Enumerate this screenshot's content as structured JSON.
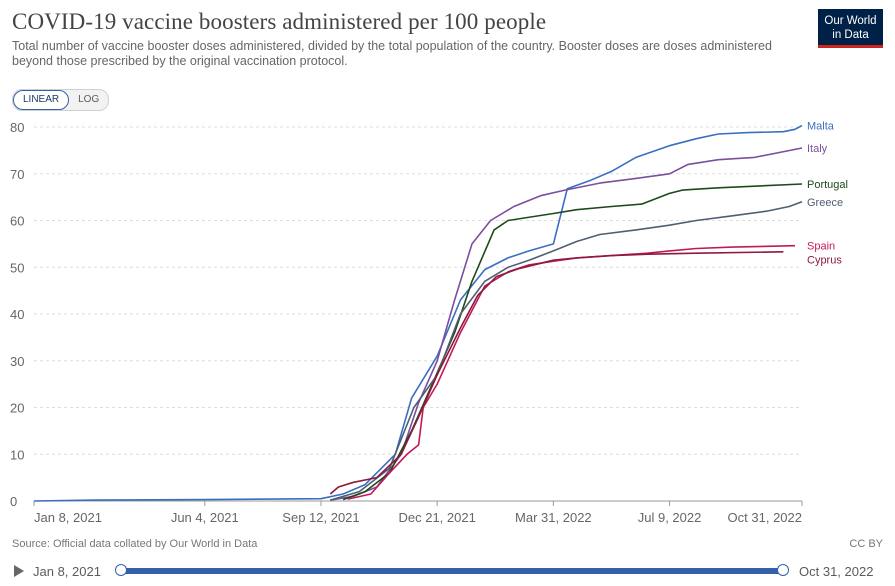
{
  "header": {
    "title": "COVID-19 vaccine boosters administered per 100 people",
    "subtitle": "Total number of vaccine booster doses administered, divided by the total population of the country. Booster doses are doses administered beyond those prescribed by the original vaccination protocol."
  },
  "logo": {
    "line1": "Our World",
    "line2": "in Data",
    "bg_color": "#002147",
    "stripe_color": "#ce261e"
  },
  "scale_toggle": {
    "linear": "LINEAR",
    "log": "LOG",
    "active": "linear"
  },
  "footer": {
    "source": "Source: Official data collated by Our World in Data",
    "license": "CC BY"
  },
  "timeline": {
    "start_label": "Jan 8, 2021",
    "end_label": "Oct 31, 2022",
    "accent_color": "#3360a9"
  },
  "chart_data": {
    "type": "line",
    "title": "COVID-19 vaccine boosters administered per 100 people",
    "xlabel": "",
    "ylabel": "",
    "ylim": [
      0,
      80
    ],
    "xlim": [
      "2021-01-08",
      "2022-10-31"
    ],
    "y_ticks": [
      0,
      10,
      20,
      30,
      40,
      50,
      60,
      70,
      80
    ],
    "x_ticks": [
      {
        "date": "2021-01-08",
        "label": "Jan 8, 2021"
      },
      {
        "date": "2021-06-04",
        "label": "Jun 4, 2021"
      },
      {
        "date": "2021-09-12",
        "label": "Sep 12, 2021"
      },
      {
        "date": "2021-12-21",
        "label": "Dec 21, 2021"
      },
      {
        "date": "2022-03-31",
        "label": "Mar 31, 2022"
      },
      {
        "date": "2022-07-09",
        "label": "Jul 9, 2022"
      },
      {
        "date": "2022-10-31",
        "label": "Oct 31, 2022"
      }
    ],
    "grid": "horizontal dashed",
    "legend": "inline labels at line ends (right)",
    "series": [
      {
        "name": "Malta",
        "color": "#3a6fc0",
        "points": [
          [
            "2021-01-08",
            0
          ],
          [
            "2021-03-01",
            0.2
          ],
          [
            "2021-06-04",
            0.3
          ],
          [
            "2021-09-12",
            0.5
          ],
          [
            "2021-10-01",
            1.5
          ],
          [
            "2021-10-20",
            3.5
          ],
          [
            "2021-11-15",
            10
          ],
          [
            "2021-11-29",
            22
          ],
          [
            "2021-12-21",
            31
          ],
          [
            "2022-01-10",
            43
          ],
          [
            "2022-01-31",
            49.5
          ],
          [
            "2022-02-20",
            52
          ],
          [
            "2022-03-10",
            53.5
          ],
          [
            "2022-03-31",
            55
          ],
          [
            "2022-04-12",
            66.8
          ],
          [
            "2022-04-20",
            67.5
          ],
          [
            "2022-05-01",
            68.5
          ],
          [
            "2022-05-20",
            70.5
          ],
          [
            "2022-06-10",
            73.5
          ],
          [
            "2022-07-09",
            76
          ],
          [
            "2022-08-01",
            77.5
          ],
          [
            "2022-08-20",
            78.5
          ],
          [
            "2022-09-15",
            78.8
          ],
          [
            "2022-10-15",
            79
          ],
          [
            "2022-10-25",
            79.5
          ],
          [
            "2022-10-31",
            80.3
          ]
        ]
      },
      {
        "name": "Italy",
        "color": "#7b4f9e",
        "points": [
          [
            "2021-09-20",
            0.2
          ],
          [
            "2021-10-10",
            1
          ],
          [
            "2021-10-30",
            3
          ],
          [
            "2021-11-20",
            10
          ],
          [
            "2021-12-05",
            21
          ],
          [
            "2021-12-21",
            30
          ],
          [
            "2022-01-05",
            43
          ],
          [
            "2022-01-20",
            55
          ],
          [
            "2022-02-05",
            60
          ],
          [
            "2022-02-25",
            63
          ],
          [
            "2022-03-20",
            65.3
          ],
          [
            "2022-04-10",
            66.5
          ],
          [
            "2022-05-10",
            68
          ],
          [
            "2022-06-10",
            69
          ],
          [
            "2022-07-09",
            70
          ],
          [
            "2022-07-25",
            72
          ],
          [
            "2022-08-20",
            73
          ],
          [
            "2022-09-20",
            73.5
          ],
          [
            "2022-10-31",
            75.5
          ]
        ]
      },
      {
        "name": "Portugal",
        "color": "#1e4a1a",
        "points": [
          [
            "2021-10-01",
            0.3
          ],
          [
            "2021-10-20",
            2
          ],
          [
            "2021-11-10",
            6
          ],
          [
            "2021-11-29",
            15
          ],
          [
            "2021-12-15",
            24
          ],
          [
            "2022-01-05",
            36
          ],
          [
            "2022-01-20",
            47
          ],
          [
            "2022-02-08",
            58
          ],
          [
            "2022-02-20",
            60
          ],
          [
            "2022-03-31",
            61.5
          ],
          [
            "2022-04-20",
            62.3
          ],
          [
            "2022-05-20",
            63
          ],
          [
            "2022-06-15",
            63.5
          ],
          [
            "2022-07-09",
            65.8
          ],
          [
            "2022-07-20",
            66.5
          ],
          [
            "2022-08-20",
            67
          ],
          [
            "2022-10-31",
            67.8
          ]
        ]
      },
      {
        "name": "Greece",
        "color": "#4f5e73",
        "points": [
          [
            "2021-09-20",
            0.2
          ],
          [
            "2021-10-15",
            2
          ],
          [
            "2021-11-10",
            7
          ],
          [
            "2021-12-01",
            20
          ],
          [
            "2021-12-21",
            27
          ],
          [
            "2022-01-10",
            40
          ],
          [
            "2022-01-31",
            47
          ],
          [
            "2022-02-20",
            50
          ],
          [
            "2022-03-10",
            51.5
          ],
          [
            "2022-03-31",
            53.5
          ],
          [
            "2022-04-20",
            55.5
          ],
          [
            "2022-05-10",
            57
          ],
          [
            "2022-06-10",
            58
          ],
          [
            "2022-07-09",
            59
          ],
          [
            "2022-08-01",
            60
          ],
          [
            "2022-09-01",
            61
          ],
          [
            "2022-10-01",
            62
          ],
          [
            "2022-10-20",
            63
          ],
          [
            "2022-10-31",
            64
          ]
        ]
      },
      {
        "name": "Spain",
        "color": "#c2185b",
        "points": [
          [
            "2021-10-05",
            0.4
          ],
          [
            "2021-10-25",
            1.5
          ],
          [
            "2021-11-10",
            6
          ],
          [
            "2021-11-25",
            10
          ],
          [
            "2021-12-05",
            12
          ],
          [
            "2021-12-09",
            20
          ],
          [
            "2021-12-21",
            25
          ],
          [
            "2022-01-10",
            36
          ],
          [
            "2022-01-31",
            46
          ],
          [
            "2022-02-20",
            49
          ],
          [
            "2022-03-10",
            50.5
          ],
          [
            "2022-03-31",
            51.3
          ],
          [
            "2022-04-20",
            52
          ],
          [
            "2022-05-20",
            52.5
          ],
          [
            "2022-06-20",
            53
          ],
          [
            "2022-07-09",
            53.5
          ],
          [
            "2022-08-01",
            54
          ],
          [
            "2022-09-01",
            54.3
          ],
          [
            "2022-10-25",
            54.6
          ]
        ]
      },
      {
        "name": "Cyprus",
        "color": "#8c1a3a",
        "points": [
          [
            "2021-09-20",
            1.5
          ],
          [
            "2021-09-27",
            3
          ],
          [
            "2021-10-10",
            4
          ],
          [
            "2021-10-30",
            5
          ],
          [
            "2021-11-20",
            10
          ],
          [
            "2021-12-05",
            18
          ],
          [
            "2021-12-21",
            27
          ],
          [
            "2022-01-10",
            37
          ],
          [
            "2022-01-25",
            44
          ],
          [
            "2022-02-10",
            48
          ],
          [
            "2022-03-01",
            49.7
          ],
          [
            "2022-03-31",
            51.5
          ],
          [
            "2022-04-20",
            52
          ],
          [
            "2022-05-20",
            52.5
          ],
          [
            "2022-06-20",
            52.8
          ],
          [
            "2022-08-01",
            53
          ],
          [
            "2022-10-15",
            53.3
          ]
        ]
      }
    ]
  }
}
